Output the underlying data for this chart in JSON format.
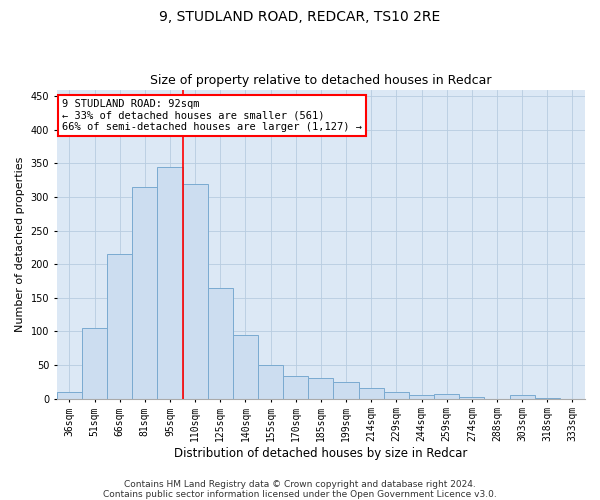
{
  "title_line1": "9, STUDLAND ROAD, REDCAR, TS10 2RE",
  "title_line2": "Size of property relative to detached houses in Redcar",
  "xlabel": "Distribution of detached houses by size in Redcar",
  "ylabel": "Number of detached properties",
  "categories": [
    "36sqm",
    "51sqm",
    "66sqm",
    "81sqm",
    "95sqm",
    "110sqm",
    "125sqm",
    "140sqm",
    "155sqm",
    "170sqm",
    "185sqm",
    "199sqm",
    "214sqm",
    "229sqm",
    "244sqm",
    "259sqm",
    "274sqm",
    "288sqm",
    "303sqm",
    "318sqm",
    "333sqm"
  ],
  "values": [
    10,
    105,
    215,
    315,
    345,
    320,
    165,
    95,
    50,
    33,
    30,
    25,
    15,
    10,
    5,
    7,
    2,
    0,
    5,
    1,
    0
  ],
  "bar_color": "#ccddf0",
  "bar_edge_color": "#7aaad0",
  "vline_index": 4.5,
  "annotation_line1": "9 STUDLAND ROAD: 92sqm",
  "annotation_line2": "← 33% of detached houses are smaller (561)",
  "annotation_line3": "66% of semi-detached houses are larger (1,127) →",
  "annotation_box_color": "white",
  "annotation_box_edge": "red",
  "vline_color": "red",
  "ylim": [
    0,
    460
  ],
  "yticks": [
    0,
    50,
    100,
    150,
    200,
    250,
    300,
    350,
    400,
    450
  ],
  "grid_color": "#b8cce0",
  "background_color": "#dce8f5",
  "footer_line1": "Contains HM Land Registry data © Crown copyright and database right 2024.",
  "footer_line2": "Contains public sector information licensed under the Open Government Licence v3.0.",
  "title_fontsize": 10,
  "subtitle_fontsize": 9,
  "xlabel_fontsize": 8.5,
  "ylabel_fontsize": 8,
  "tick_fontsize": 7,
  "annot_fontsize": 7.5,
  "footer_fontsize": 6.5
}
